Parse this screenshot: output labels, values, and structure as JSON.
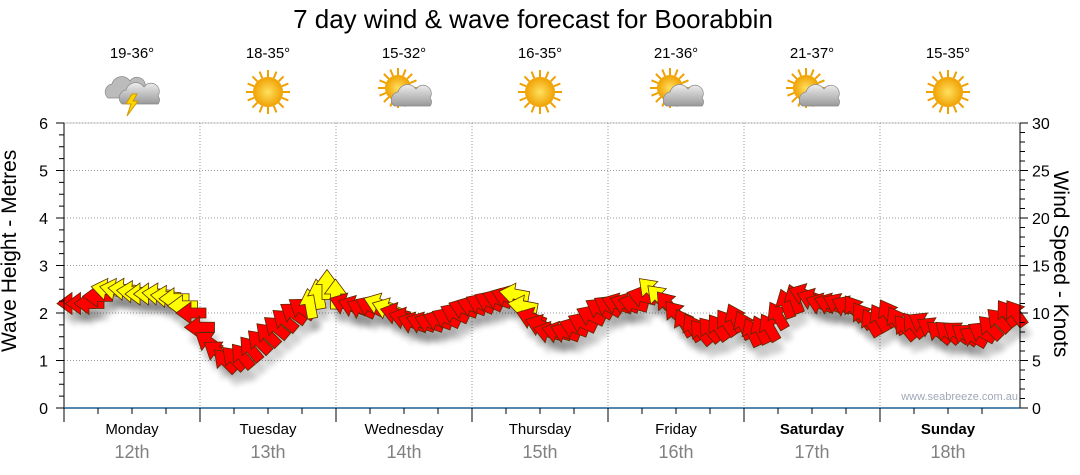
{
  "chart_data": {
    "type": "scatter",
    "title": "7 day wind & wave forecast for Boorabbin",
    "ylabel_left": "Wave Height - Metres",
    "ylabel_right": "Wind Speed - Knots",
    "ylim_left": [
      0,
      6
    ],
    "ylim_right": [
      0,
      30
    ],
    "yticks_left": [
      "0",
      "1",
      "2",
      "3",
      "4",
      "5",
      "6"
    ],
    "yticks_right": [
      "0",
      "5",
      "10",
      "15",
      "20",
      "25",
      "30"
    ],
    "grid": true,
    "days": [
      {
        "name": "Monday",
        "date": "12th",
        "temp": "19-36°",
        "icon": "storm-icon",
        "bold": false
      },
      {
        "name": "Tuesday",
        "date": "13th",
        "temp": "18-35°",
        "icon": "sun-icon",
        "bold": false
      },
      {
        "name": "Wednesday",
        "date": "14th",
        "temp": "15-32°",
        "icon": "partly-cloudy-icon",
        "bold": false
      },
      {
        "name": "Thursday",
        "date": "15th",
        "temp": "16-35°",
        "icon": "sun-icon",
        "bold": false
      },
      {
        "name": "Friday",
        "date": "16th",
        "temp": "21-36°",
        "icon": "partly-cloudy-icon",
        "bold": false
      },
      {
        "name": "Saturday",
        "date": "17th",
        "temp": "21-37°",
        "icon": "partly-cloudy-icon",
        "bold": true
      },
      {
        "name": "Sunday",
        "date": "18th",
        "temp": "15-35°",
        "icon": "sun-icon",
        "bold": true
      }
    ],
    "wind_series": {
      "name": "Wind speed (knots) with direction arrows, every 3 hours",
      "knots": [
        11,
        11,
        12.5,
        12.5,
        12,
        12,
        11.5,
        10,
        7,
        5,
        5.5,
        7,
        8.5,
        10,
        11,
        13,
        11,
        10.5,
        11,
        10,
        9,
        9,
        9.5,
        10.5,
        11,
        11.5,
        12,
        9.5,
        8,
        8,
        9,
        10.5,
        11,
        11,
        12.5,
        11,
        9,
        8,
        8.5,
        9.5,
        8,
        8.5,
        11,
        12,
        11,
        11,
        10.5,
        9,
        10,
        8.5,
        9,
        8,
        8,
        7.5,
        8.5,
        10
      ],
      "direction_deg": [
        180,
        180,
        190,
        185,
        180,
        185,
        180,
        180,
        215,
        225,
        230,
        225,
        220,
        215,
        260,
        270,
        200,
        205,
        200,
        195,
        200,
        200,
        205,
        200,
        205,
        200,
        190,
        200,
        195,
        200,
        205,
        210,
        200,
        195,
        225,
        230,
        240,
        230,
        235,
        245,
        245,
        240,
        250,
        200,
        200,
        205,
        235,
        240,
        240,
        230,
        210,
        220,
        215,
        210,
        225,
        235
      ],
      "category": [
        "r",
        "r",
        "y",
        "y",
        "y",
        "y",
        "y",
        "r",
        "r",
        "r",
        "r",
        "r",
        "r",
        "r",
        "y",
        "y",
        "r",
        "r",
        "y",
        "r",
        "r",
        "r",
        "r",
        "r",
        "r",
        "r",
        "y",
        "r",
        "r",
        "r",
        "r",
        "r",
        "r",
        "r",
        "y",
        "r",
        "r",
        "r",
        "r",
        "r",
        "r",
        "r",
        "r",
        "r",
        "r",
        "r",
        "r",
        "r",
        "r",
        "r",
        "r",
        "r",
        "r",
        "r",
        "r",
        "r"
      ]
    },
    "colors": {
      "strong": "#ff0000",
      "moderate": "#ffff00",
      "axis": "#1f5f8f"
    }
  },
  "credit": "www.seabreeze.com.au"
}
